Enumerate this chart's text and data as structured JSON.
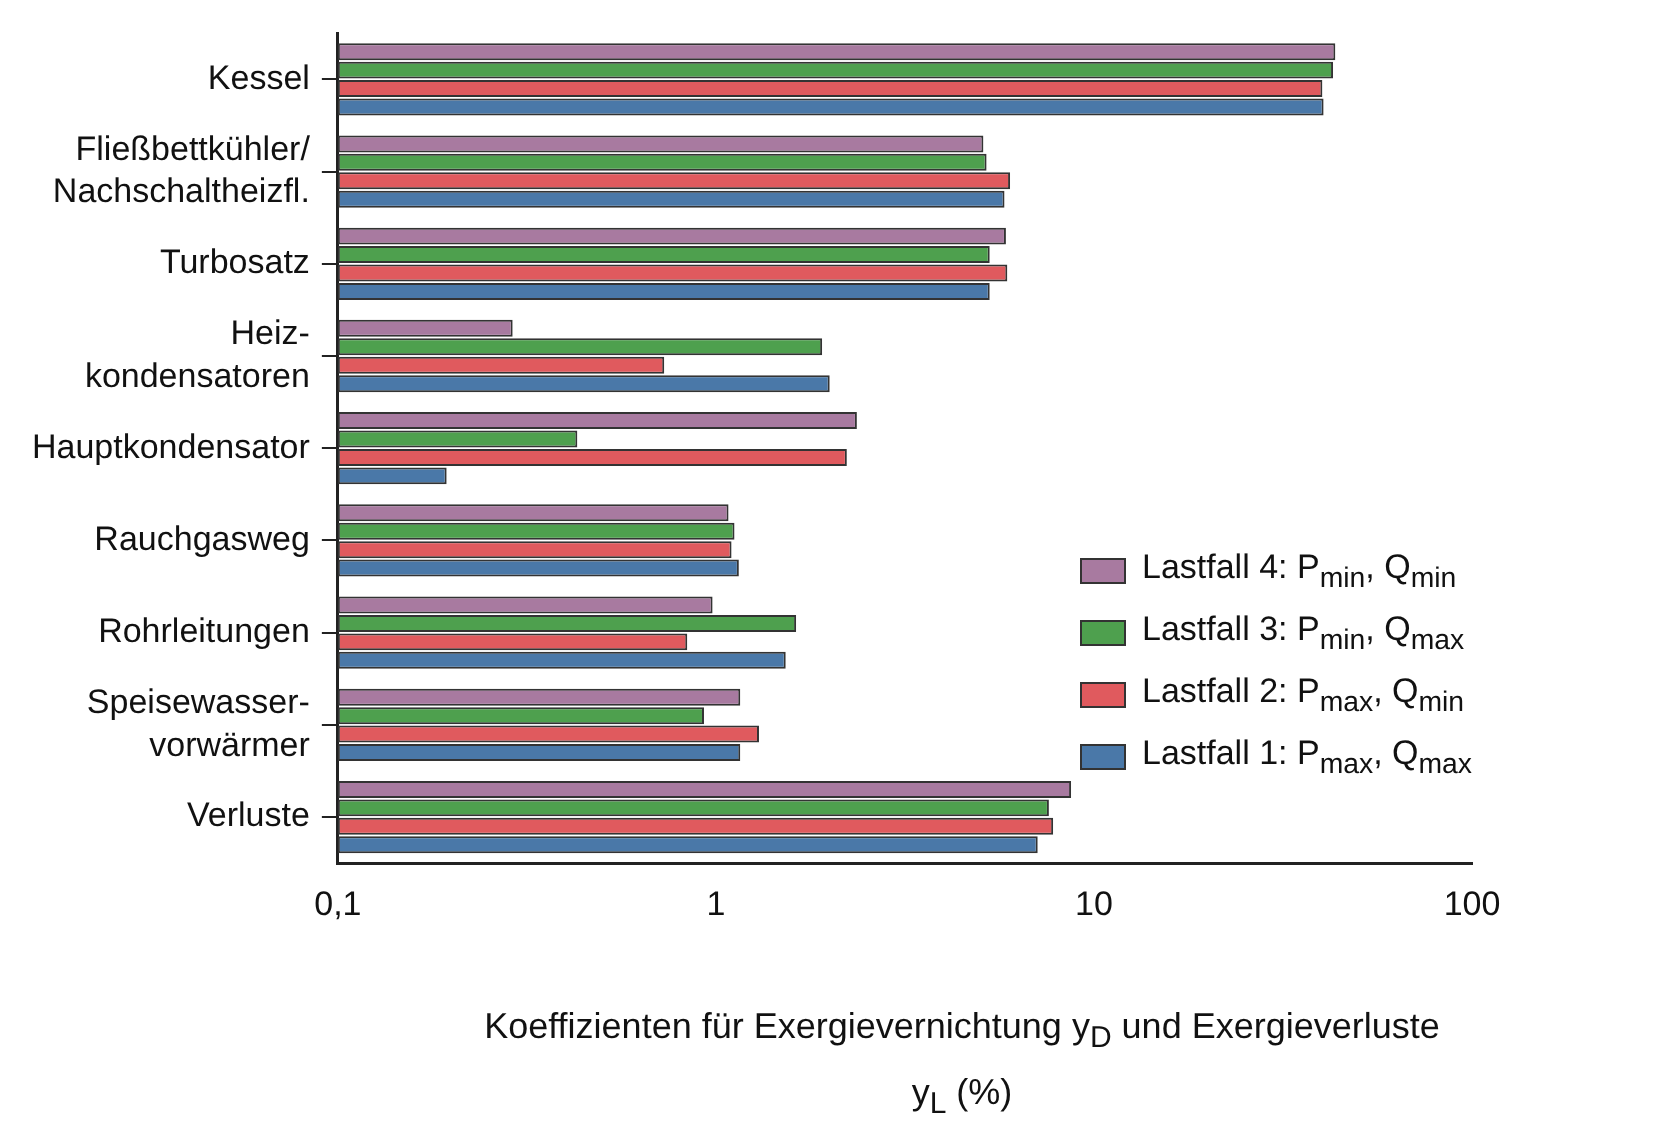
{
  "chart_data": {
    "type": "bar",
    "orientation": "horizontal",
    "log": "x",
    "grid": false,
    "legend": "right",
    "xlabel": "Koeffizienten für Exergievernichtung y$_{D}$ und Exergieverluste y$_{L}$ (%)",
    "categories": [
      "Kessel",
      "Fließbettkühler/\nNachschaltheizfl.",
      "Turbosatz",
      "Heiz-\nkondensatoren",
      "Hauptkondensator",
      "Rauchgasweg",
      "Rohrleitungen",
      "Speisewasser-\nvorwärmer",
      "Verluste"
    ],
    "xlim": [
      0.1,
      100
    ],
    "xticks": [
      {
        "value": 0.1,
        "label": "0,1"
      },
      1,
      10,
      100
    ],
    "series": [
      {
        "name": "Lastfall 4: P$_{min}$, Q$_{min}$",
        "color": "#a87aa0",
        "values": [
          43.5,
          5.1,
          5.85,
          0.29,
          2.36,
          1.08,
          0.98,
          1.16,
          8.7
        ]
      },
      {
        "name": "Lastfall 3: P$_{min}$, Q$_{max}$",
        "color": "#4ea04e",
        "values": [
          42.9,
          5.2,
          5.3,
          1.91,
          0.43,
          1.12,
          1.63,
          0.93,
          7.6
        ]
      },
      {
        "name": "Lastfall 2: P$_{max}$, Q$_{min}$",
        "color": "#e05a5e",
        "values": [
          40.2,
          6.0,
          5.9,
          0.73,
          2.22,
          1.1,
          0.84,
          1.3,
          7.8
        ]
      },
      {
        "name": "Lastfall 1: P$_{max}$, Q$_{max}$",
        "color": "#4a78a8",
        "values": [
          40.5,
          5.8,
          5.3,
          2.0,
          0.194,
          1.15,
          1.53,
          1.16,
          7.1
        ]
      }
    ]
  }
}
